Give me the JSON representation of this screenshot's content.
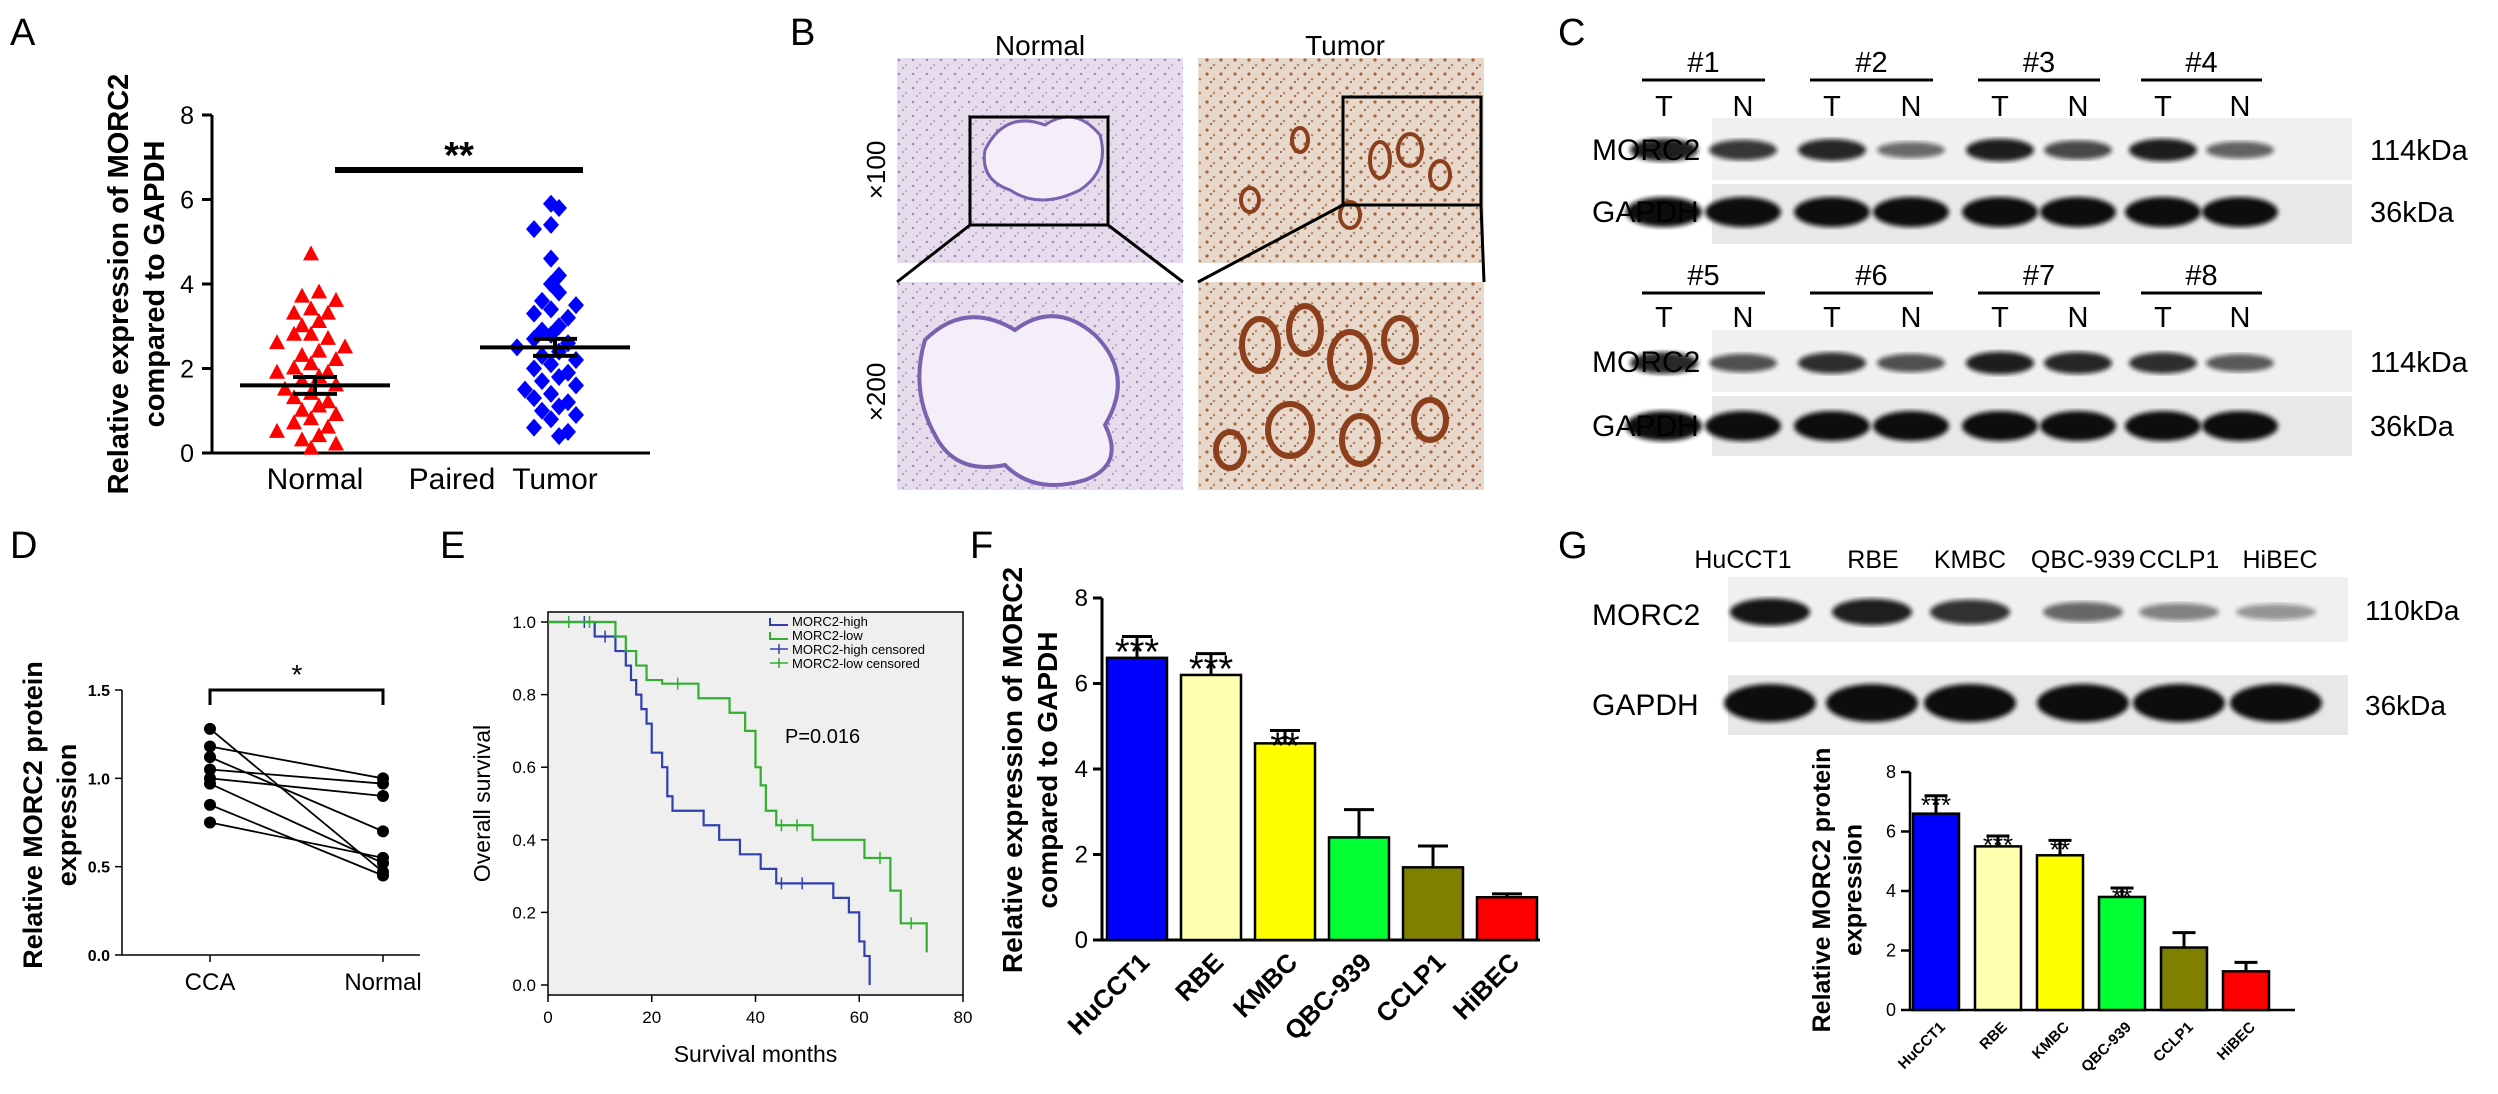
{
  "panels": {
    "A": "A",
    "B": "B",
    "C": "C",
    "D": "D",
    "E": "E",
    "F": "F",
    "G": "G"
  },
  "chart_data": [
    {
      "panel": "A",
      "type": "scatter",
      "ylabel": "Relative expression of MORC2\ncompared to GAPDH",
      "ylim": [
        0,
        8
      ],
      "yticks": [
        "0",
        "2",
        "4",
        "6",
        "8"
      ],
      "categories": [
        "Normal",
        "Tumor"
      ],
      "center_label": "Paired",
      "significance": "**",
      "series": [
        {
          "name": "Normal",
          "color": "#ff0000",
          "marker": "triangle",
          "mean": 1.6,
          "sem": 0.2,
          "values": [
            4.7,
            3.8,
            3.7,
            3.6,
            3.4,
            3.3,
            3.3,
            3.1,
            3.0,
            2.8,
            2.8,
            2.7,
            2.6,
            2.5,
            2.4,
            2.3,
            2.2,
            2.1,
            2.0,
            1.9,
            1.9,
            1.8,
            1.7,
            1.6,
            1.5,
            1.4,
            1.3,
            1.2,
            1.1,
            1.0,
            0.9,
            0.8,
            0.7,
            0.6,
            0.5,
            0.4,
            0.3,
            0.2,
            0.1
          ]
        },
        {
          "name": "Tumor",
          "color": "#0000ff",
          "marker": "diamond",
          "mean": 2.5,
          "sem": 0.2,
          "values": [
            5.9,
            5.8,
            5.4,
            5.3,
            4.6,
            4.2,
            4.0,
            3.8,
            3.6,
            3.5,
            3.4,
            3.3,
            3.2,
            3.0,
            2.9,
            2.8,
            2.7,
            2.6,
            2.5,
            2.4,
            2.3,
            2.2,
            2.1,
            2.0,
            1.9,
            1.8,
            1.7,
            1.6,
            1.5,
            1.4,
            1.3,
            1.2,
            1.1,
            1.0,
            0.9,
            0.8,
            0.6,
            0.5,
            0.4
          ]
        }
      ]
    },
    {
      "panel": "D",
      "type": "line",
      "ylabel": "Relative MORC2 protein\nexpression",
      "ylim": [
        0,
        1.5
      ],
      "yticks": [
        "0.0",
        "0.5",
        "1.0",
        "1.5"
      ],
      "categories": [
        "CCA",
        "Normal"
      ],
      "significance": "*",
      "pairs": [
        [
          1.28,
          0.47
        ],
        [
          1.18,
          1.0
        ],
        [
          1.12,
          0.7
        ],
        [
          1.05,
          0.97
        ],
        [
          1.0,
          0.9
        ],
        [
          0.97,
          0.52
        ],
        [
          0.85,
          0.45
        ],
        [
          0.75,
          0.55
        ]
      ]
    },
    {
      "panel": "E",
      "type": "line",
      "xlabel": "Survival months",
      "ylabel": "Overall survival",
      "xlim": [
        0,
        80
      ],
      "ylim": [
        0,
        1.0
      ],
      "xticks": [
        "0",
        "20",
        "40",
        "60",
        "80"
      ],
      "yticks": [
        "0.0",
        "0.2",
        "0.4",
        "0.6",
        "0.8",
        "1.0"
      ],
      "annotation": "P=0.016",
      "legend": [
        "MORC2-high",
        "MORC2-low",
        "MORC2-high censored",
        "MORC2-low censored"
      ],
      "series": [
        {
          "name": "MORC2-high",
          "color": "#3040b0",
          "steps": [
            [
              0,
              1.0
            ],
            [
              9,
              0.96
            ],
            [
              13,
              0.92
            ],
            [
              15,
              0.88
            ],
            [
              16,
              0.84
            ],
            [
              17,
              0.8
            ],
            [
              18,
              0.76
            ],
            [
              19,
              0.72
            ],
            [
              20,
              0.64
            ],
            [
              22,
              0.6
            ],
            [
              23,
              0.52
            ],
            [
              24,
              0.48
            ],
            [
              30,
              0.44
            ],
            [
              33,
              0.4
            ],
            [
              37,
              0.36
            ],
            [
              41,
              0.32
            ],
            [
              44,
              0.28
            ],
            [
              55,
              0.24
            ],
            [
              58,
              0.2
            ],
            [
              60,
              0.12
            ],
            [
              61,
              0.08
            ],
            [
              62,
              0.0
            ]
          ],
          "censored": [
            [
              7,
              1.0
            ],
            [
              11,
              0.96
            ],
            [
              45,
              0.28
            ],
            [
              49,
              0.28
            ]
          ]
        },
        {
          "name": "MORC2-low",
          "color": "#30b030",
          "steps": [
            [
              0,
              1.0
            ],
            [
              13,
              0.96
            ],
            [
              15,
              0.92
            ],
            [
              17,
              0.88
            ],
            [
              19,
              0.84
            ],
            [
              22,
              0.83
            ],
            [
              29,
              0.79
            ],
            [
              35,
              0.75
            ],
            [
              38,
              0.7
            ],
            [
              40,
              0.6
            ],
            [
              41,
              0.55
            ],
            [
              42,
              0.48
            ],
            [
              44,
              0.44
            ],
            [
              51,
              0.4
            ],
            [
              61,
              0.35
            ],
            [
              66,
              0.26
            ],
            [
              68,
              0.17
            ],
            [
              73,
              0.09
            ]
          ],
          "censored": [
            [
              4,
              1.0
            ],
            [
              8,
              1.0
            ],
            [
              25,
              0.83
            ],
            [
              45,
              0.44
            ],
            [
              48,
              0.44
            ],
            [
              64,
              0.35
            ],
            [
              70,
              0.17
            ]
          ]
        }
      ]
    },
    {
      "panel": "F",
      "type": "bar",
      "ylabel": "Relative expression of MORC2\ncompared to GAPDH",
      "ylim": [
        0,
        8
      ],
      "yticks": [
        "0",
        "2",
        "4",
        "6",
        "8"
      ],
      "categories": [
        "HuCCT1",
        "RBE",
        "KMBC",
        "QBC-939",
        "CCLP1",
        "HiBEC"
      ],
      "values": [
        6.6,
        6.2,
        4.6,
        2.4,
        1.7,
        1.0
      ],
      "errors": [
        0.5,
        0.5,
        0.3,
        0.65,
        0.5,
        0.08
      ],
      "colors": [
        "#0000ff",
        "#ffffb0",
        "#ffff00",
        "#00ff33",
        "#7f7f00",
        "#ff0000"
      ],
      "significance": [
        "***",
        "***",
        "**",
        "",
        "",
        ""
      ]
    },
    {
      "panel": "G",
      "type": "bar",
      "ylabel": "Relative MORC2 protein\nexpression",
      "ylim": [
        0,
        8
      ],
      "yticks": [
        "0",
        "2",
        "4",
        "6",
        "8"
      ],
      "categories": [
        "HuCCT1",
        "RBE",
        "KMBC",
        "QBC-939",
        "CCLP1",
        "HiBEC"
      ],
      "values": [
        6.6,
        5.5,
        5.2,
        3.8,
        2.1,
        1.3
      ],
      "errors": [
        0.6,
        0.35,
        0.5,
        0.3,
        0.5,
        0.3
      ],
      "colors": [
        "#0000ff",
        "#ffffb0",
        "#ffff00",
        "#00ff33",
        "#7f7f00",
        "#ff0000"
      ],
      "significance": [
        "***",
        "***",
        "**",
        "**",
        "",
        ""
      ]
    }
  ],
  "histology": {
    "col_labels": [
      "Normal",
      "Tumor"
    ],
    "row_labels": [
      "×100",
      "×200"
    ]
  },
  "blot_c": {
    "groups_top": [
      "#1",
      "#2",
      "#3",
      "#4"
    ],
    "groups_bottom": [
      "#5",
      "#6",
      "#7",
      "#8"
    ],
    "lane_labels": [
      "T",
      "N"
    ],
    "rows": [
      "MORC2",
      "GAPDH"
    ],
    "sizes": [
      "114kDa",
      "36kDa"
    ],
    "morc2_intensity_top": [
      0.9,
      0.75,
      0.85,
      0.45,
      0.9,
      0.65,
      0.9,
      0.5
    ],
    "morc2_intensity_bottom": [
      0.85,
      0.6,
      0.8,
      0.6,
      0.9,
      0.85,
      0.8,
      0.55
    ]
  },
  "blot_g": {
    "lanes": [
      "HuCCT1",
      "RBE",
      "KMBC",
      "QBC-939",
      "CCLP1",
      "HiBEC"
    ],
    "rows": [
      "MORC2",
      "GAPDH"
    ],
    "sizes": [
      "110kDa",
      "36kDa"
    ],
    "morc2_intensity": [
      0.95,
      0.9,
      0.8,
      0.5,
      0.35,
      0.25
    ]
  }
}
